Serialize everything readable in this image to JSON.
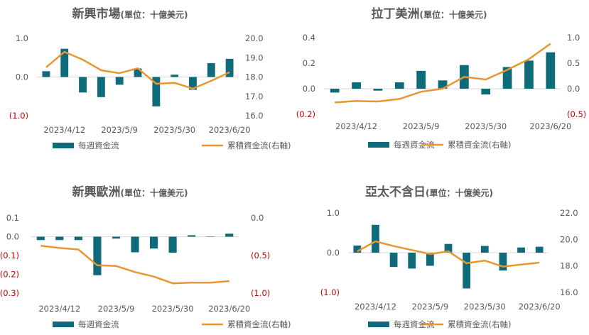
{
  "colors": {
    "bar": "#0f6a7a",
    "line": "#e8962f",
    "negative_tick": "#c00000",
    "text": "#595959"
  },
  "legend": {
    "bar_label": "每週資金流",
    "line_label": "累積資金流(右軸)"
  },
  "chart_data": [
    {
      "type": "bar+line",
      "title": "新興市場",
      "subtitle": "(單位：十億美元)",
      "left_axis": {
        "ylim": [
          -1.0,
          1.0
        ],
        "ticks": [
          {
            "v": 1.0,
            "label": "1.0"
          },
          {
            "v": 0.0,
            "label": "0.0"
          },
          {
            "v": -1.0,
            "label": "(1.0)"
          }
        ]
      },
      "right_axis": {
        "ylim": [
          16.0,
          20.0
        ],
        "ticks": [
          {
            "v": 20.0,
            "label": "20.0"
          },
          {
            "v": 19.0,
            "label": "19.0"
          },
          {
            "v": 18.0,
            "label": "18.0"
          },
          {
            "v": 17.0,
            "label": "17.0"
          },
          {
            "v": 16.0,
            "label": "16.0"
          }
        ]
      },
      "x_tick_labels": [
        {
          "i": 1,
          "label": "2023/4/12"
        },
        {
          "i": 4,
          "label": "2023/5/9"
        },
        {
          "i": 7,
          "label": "2023/5/30"
        },
        {
          "i": 10,
          "label": "2023/6/20"
        }
      ],
      "bars": [
        0.15,
        0.73,
        -0.4,
        -0.52,
        -0.2,
        0.22,
        -0.76,
        0.06,
        -0.33,
        0.36,
        0.47
      ],
      "line": [
        18.5,
        19.3,
        18.9,
        18.35,
        18.2,
        18.45,
        17.65,
        17.7,
        17.4,
        17.8,
        18.25
      ]
    },
    {
      "type": "bar+line",
      "title": "拉丁美洲",
      "subtitle": "(單位：十億美元)",
      "left_axis": {
        "ylim": [
          -0.2,
          0.4
        ],
        "ticks": [
          {
            "v": 0.4,
            "label": "0.4"
          },
          {
            "v": 0.2,
            "label": "0.2"
          },
          {
            "v": 0.0,
            "label": "0.0"
          },
          {
            "v": -0.2,
            "label": "(0.2)"
          }
        ]
      },
      "right_axis": {
        "ylim": [
          -0.5,
          1.0
        ],
        "ticks": [
          {
            "v": 1.0,
            "label": "1.0"
          },
          {
            "v": 0.5,
            "label": "0.5"
          },
          {
            "v": 0.0,
            "label": "0.0"
          },
          {
            "v": -0.5,
            "label": "(0.5)"
          }
        ]
      },
      "x_tick_labels": [
        {
          "i": 1,
          "label": "2023/4/12"
        },
        {
          "i": 4,
          "label": "2023/5/9"
        },
        {
          "i": 7,
          "label": "2023/5/30"
        },
        {
          "i": 10,
          "label": "2023/6/20"
        }
      ],
      "bars": [
        -0.03,
        0.05,
        -0.015,
        0.05,
        0.14,
        0.065,
        0.185,
        -0.045,
        0.17,
        0.22,
        0.285
      ],
      "line": [
        -0.27,
        -0.24,
        -0.25,
        -0.2,
        -0.06,
        0.0,
        0.23,
        0.18,
        0.37,
        0.58,
        0.88
      ]
    },
    {
      "type": "bar+line",
      "title": "新興歐洲",
      "subtitle": "(單位：十億美元)",
      "left_axis": {
        "ylim": [
          -0.3,
          0.1
        ],
        "ticks": [
          {
            "v": 0.1,
            "label": "0.1"
          },
          {
            "v": 0.0,
            "label": "0.0"
          },
          {
            "v": -0.1,
            "label": "(0.1)"
          },
          {
            "v": -0.2,
            "label": "(0.2)"
          },
          {
            "v": -0.3,
            "label": "(0.3)"
          }
        ]
      },
      "right_axis": {
        "ylim": [
          -1.0,
          0.0
        ],
        "reversed": true,
        "ticks": [
          {
            "v": 0.0,
            "label": "0.0"
          },
          {
            "v": -0.5,
            "label": "(0.5)"
          },
          {
            "v": -1.0,
            "label": "(1.0)"
          }
        ]
      },
      "x_tick_labels": [
        {
          "i": 1,
          "label": "2023/4/12"
        },
        {
          "i": 4,
          "label": "2023/5/9"
        },
        {
          "i": 7,
          "label": "2023/5/30"
        },
        {
          "i": 10,
          "label": "2023/6/20"
        }
      ],
      "bars": [
        -0.018,
        -0.018,
        -0.018,
        -0.205,
        -0.01,
        -0.083,
        -0.063,
        -0.085,
        0.008,
        0.0,
        0.016
      ],
      "line": [
        -0.37,
        -0.4,
        -0.42,
        -0.63,
        -0.64,
        -0.72,
        -0.78,
        -0.87,
        -0.86,
        -0.86,
        -0.84
      ]
    },
    {
      "type": "bar+line",
      "title": "亞太不含日",
      "subtitle": "(單位：十億美元)",
      "left_axis": {
        "ylim": [
          -1.0,
          1.0
        ],
        "ticks": [
          {
            "v": 1.0,
            "label": "1.0"
          },
          {
            "v": 0.0,
            "label": "0.0"
          },
          {
            "v": -1.0,
            "label": "(1.0)"
          }
        ]
      },
      "right_axis": {
        "ylim": [
          16.0,
          22.0
        ],
        "ticks": [
          {
            "v": 22.0,
            "label": "22.0"
          },
          {
            "v": 20.0,
            "label": "20.0"
          },
          {
            "v": 18.0,
            "label": "18.0"
          },
          {
            "v": 16.0,
            "label": "16.0"
          }
        ]
      },
      "x_tick_labels": [
        {
          "i": 1,
          "label": "2023/4/12"
        },
        {
          "i": 4,
          "label": "2023/5/9"
        },
        {
          "i": 7,
          "label": "2023/5/30"
        },
        {
          "i": 10,
          "label": "2023/6/20"
        }
      ],
      "bars": [
        0.18,
        0.7,
        -0.36,
        -0.4,
        -0.33,
        0.22,
        -0.9,
        0.17,
        -0.45,
        0.13,
        0.15
      ],
      "line": [
        19.1,
        19.85,
        19.5,
        19.2,
        18.9,
        19.1,
        18.2,
        18.4,
        17.95,
        18.1,
        18.25
      ]
    }
  ]
}
